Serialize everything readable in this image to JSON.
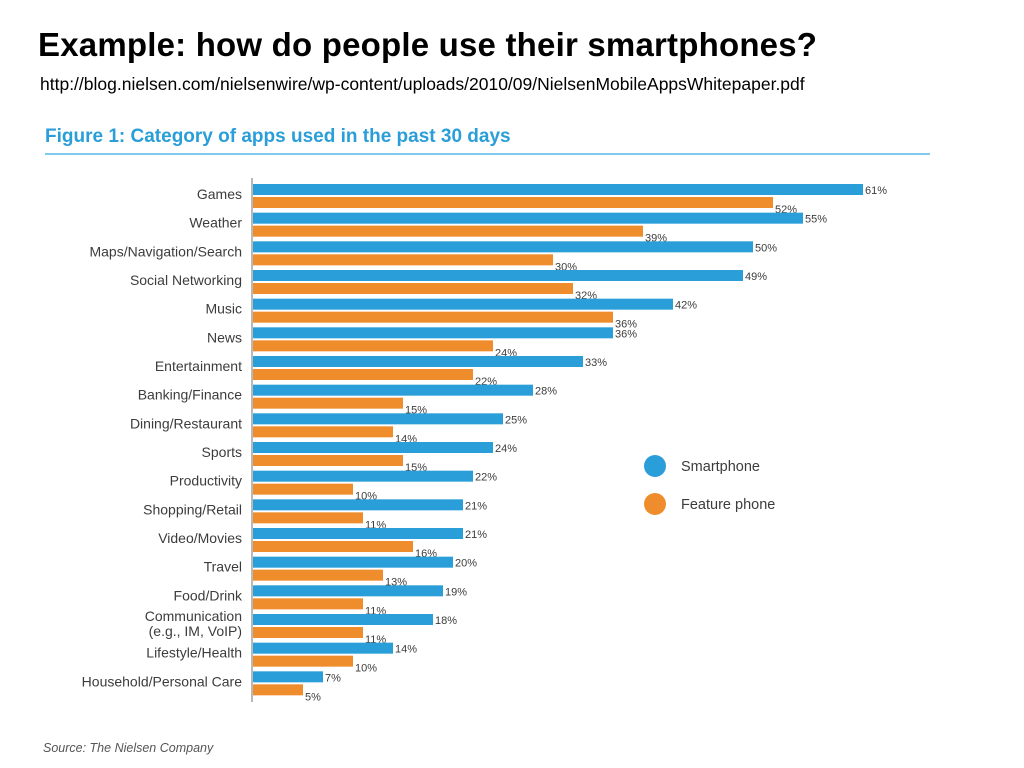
{
  "slide": {
    "title": "Example:  how do people use their smartphones?",
    "url": "http://blog.nielsen.com/nielsenwire/wp-content/uploads/2010/09/NielsenMobileAppsWhitepaper.pdf"
  },
  "figure": {
    "title": "Figure 1: Category of apps used in the past 30 days",
    "source": "Source: The Nielsen Company"
  },
  "colors": {
    "smartphone": "#2a9ed8",
    "feature_phone": "#ef8d2c",
    "accent": "#2a9ed8"
  },
  "chart_data": {
    "type": "bar",
    "orientation": "horizontal",
    "categories": [
      "Games",
      "Weather",
      "Maps/Navigation/Search",
      "Social Networking",
      "Music",
      "News",
      "Entertainment",
      "Banking/Finance",
      "Dining/Restaurant",
      "Sports",
      "Productivity",
      "Shopping/Retail",
      "Video/Movies",
      "Travel",
      "Food/Drink",
      [
        "Communication",
        "(e.g., IM, VoIP)"
      ],
      "Lifestyle/Health",
      "Household/Personal Care"
    ],
    "series": [
      {
        "name": "Smartphone",
        "values": [
          61,
          55,
          50,
          49,
          42,
          36,
          33,
          28,
          25,
          24,
          22,
          21,
          21,
          20,
          19,
          18,
          14,
          7
        ]
      },
      {
        "name": "Feature phone",
        "values": [
          52,
          39,
          30,
          32,
          36,
          24,
          22,
          15,
          14,
          15,
          10,
          11,
          16,
          13,
          11,
          11,
          10,
          5
        ]
      }
    ],
    "value_suffix": "%",
    "xlim": [
      0,
      61
    ],
    "grid": false,
    "legend_position": "right"
  }
}
